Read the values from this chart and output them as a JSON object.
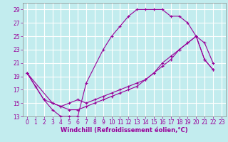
{
  "xlabel": "Windchill (Refroidissement éolien,°C)",
  "bg_color": "#c2ecee",
  "grid_color": "#ffffff",
  "line_color": "#990099",
  "xlim": [
    -0.5,
    23.5
  ],
  "ylim": [
    13,
    30
  ],
  "xticks": [
    0,
    1,
    2,
    3,
    4,
    5,
    6,
    7,
    8,
    9,
    10,
    11,
    12,
    13,
    14,
    15,
    16,
    17,
    18,
    19,
    20,
    21,
    22,
    23
  ],
  "yticks": [
    13,
    15,
    17,
    19,
    21,
    23,
    25,
    27,
    29
  ],
  "line1_x": [
    0,
    1,
    2,
    3,
    4,
    5,
    6,
    7,
    9,
    10,
    11,
    12,
    13,
    14,
    15,
    16,
    17,
    18,
    19,
    20,
    21,
    22
  ],
  "line1_y": [
    19.5,
    17.5,
    15.5,
    14.0,
    13.0,
    13.0,
    13.0,
    18.0,
    23.0,
    25.0,
    26.5,
    28.0,
    29.0,
    29.0,
    29.0,
    29.0,
    28.0,
    28.0,
    27.0,
    25.0,
    24.0,
    21.0
  ],
  "line2_x": [
    0,
    2,
    3,
    4,
    5,
    6,
    7,
    8,
    9,
    10,
    11,
    12,
    13,
    14,
    15,
    16,
    17,
    18,
    19,
    20,
    21,
    22
  ],
  "line2_y": [
    19.5,
    15.5,
    15.0,
    14.5,
    15.0,
    15.5,
    15.0,
    15.5,
    16.0,
    16.5,
    17.0,
    17.5,
    18.0,
    18.5,
    19.5,
    20.5,
    21.5,
    23.0,
    24.0,
    25.0,
    21.5,
    20.0
  ],
  "line3_x": [
    0,
    3,
    4,
    5,
    6,
    7,
    8,
    9,
    10,
    11,
    12,
    13,
    14,
    15,
    16,
    17,
    18,
    19,
    20,
    21,
    22
  ],
  "line3_y": [
    19.5,
    15.0,
    14.5,
    14.0,
    14.0,
    14.5,
    15.0,
    15.5,
    16.0,
    16.5,
    17.0,
    17.5,
    18.5,
    19.5,
    21.0,
    22.0,
    23.0,
    24.0,
    25.0,
    21.5,
    20.0
  ],
  "xlabel_fontsize": 6,
  "tick_fontsize": 5.5
}
